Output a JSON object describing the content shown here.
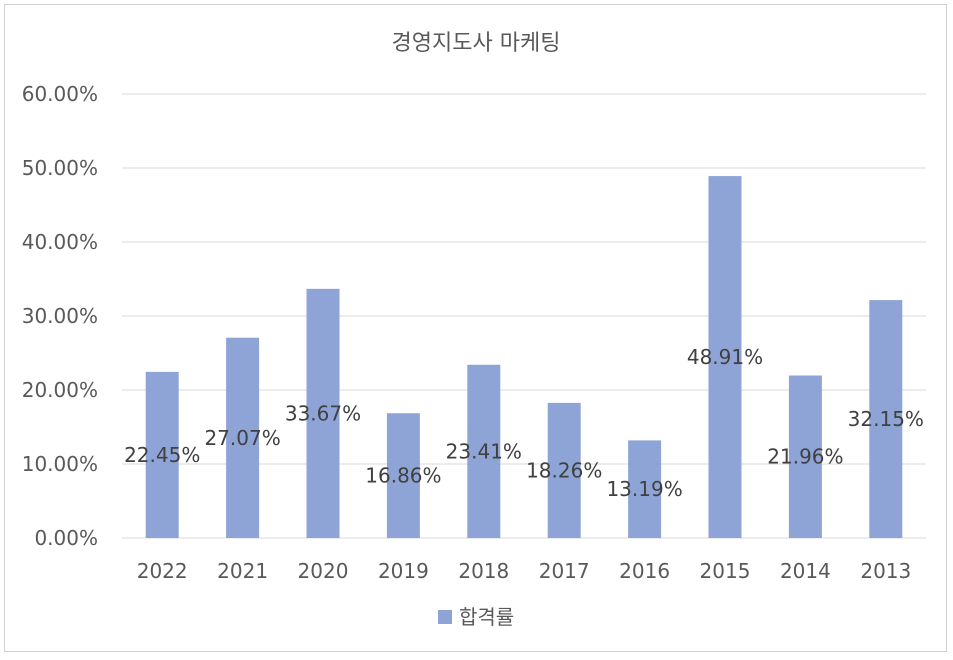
{
  "chart_data": {
    "type": "bar",
    "title": "경영지도사 마케팅",
    "categories": [
      "2022",
      "2021",
      "2020",
      "2019",
      "2018",
      "2017",
      "2016",
      "2015",
      "2014",
      "2013"
    ],
    "series": [
      {
        "name": "합격률",
        "values": [
          22.45,
          27.07,
          33.67,
          16.86,
          23.41,
          18.26,
          13.19,
          48.91,
          21.96,
          32.15
        ],
        "labels": [
          "22.45%",
          "27.07%",
          "33.67%",
          "16.86%",
          "23.41%",
          "18.26%",
          "13.19%",
          "48.91%",
          "21.96%",
          "32.15%"
        ],
        "color": "#8fa4d6"
      }
    ],
    "ylim": [
      0,
      60
    ],
    "yticks": [
      "0.00%",
      "10.00%",
      "20.00%",
      "30.00%",
      "40.00%",
      "50.00%",
      "60.00%"
    ],
    "grid": true,
    "legend_position": "bottom",
    "gridline_color": "#d9d9d9"
  }
}
